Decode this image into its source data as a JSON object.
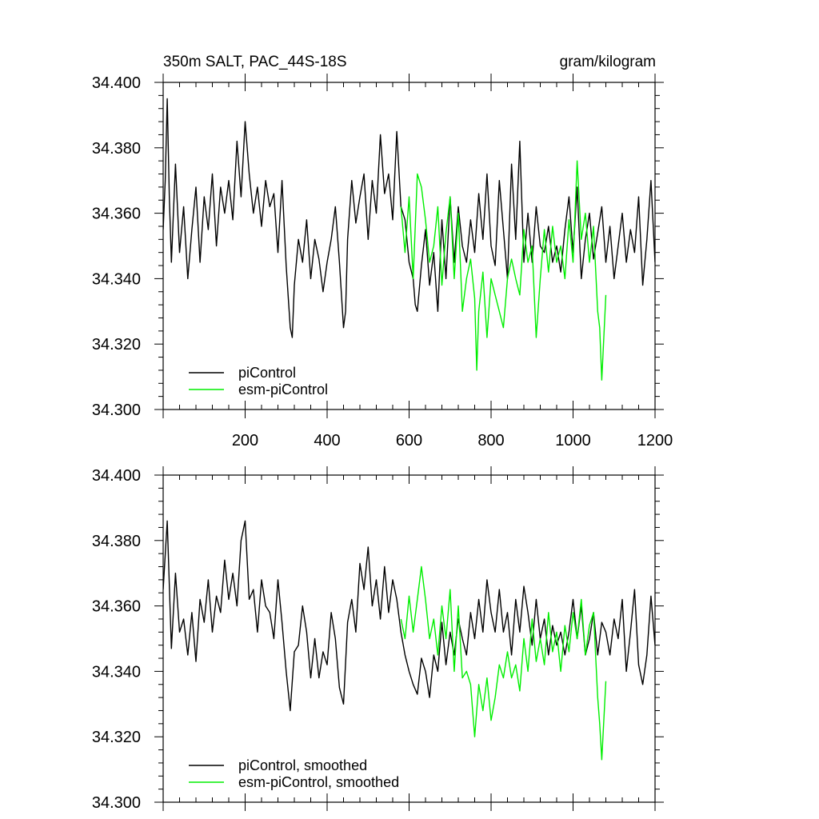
{
  "header": {
    "title_left": "350m SALT, PAC_44S-18S",
    "title_right": "gram/kilogram"
  },
  "colors": {
    "piControl": "#000000",
    "esm_piControl": "#00ee00"
  },
  "chart_data": [
    {
      "type": "line",
      "title": "350m SALT, PAC_44S-18S",
      "units": "gram/kilogram",
      "xlim": [
        0,
        1200
      ],
      "ylim": [
        34.3,
        34.4
      ],
      "xticks": [
        200,
        400,
        600,
        800,
        1000,
        1200
      ],
      "yticks": [
        "34.300",
        "34.320",
        "34.340",
        "34.360",
        "34.380",
        "34.400"
      ],
      "legend_position": "bottom-left",
      "series": [
        {
          "name": "piControl",
          "color": "#000000",
          "x": [
            0,
            5,
            10,
            15,
            20,
            25,
            30,
            40,
            50,
            60,
            70,
            80,
            90,
            100,
            110,
            120,
            130,
            140,
            150,
            160,
            170,
            180,
            190,
            200,
            210,
            220,
            230,
            240,
            250,
            260,
            270,
            280,
            290,
            300,
            310,
            315,
            320,
            330,
            340,
            350,
            360,
            370,
            380,
            390,
            400,
            410,
            420,
            430,
            440,
            445,
            450,
            460,
            470,
            480,
            490,
            500,
            510,
            520,
            530,
            540,
            550,
            560,
            570,
            580,
            590,
            600,
            610,
            615,
            620,
            630,
            640,
            650,
            660,
            670,
            680,
            690,
            700,
            710,
            720,
            730,
            740,
            750,
            760,
            770,
            780,
            790,
            800,
            810,
            820,
            830,
            840,
            850,
            860,
            870,
            880,
            890,
            900,
            910,
            920,
            930,
            940,
            950,
            960,
            970,
            980,
            990,
            1000,
            1010,
            1020,
            1030,
            1040,
            1050,
            1060,
            1070,
            1080,
            1090,
            1100,
            1110,
            1120,
            1130,
            1140,
            1150,
            1160,
            1170,
            1180,
            1190,
            1200
          ],
          "y": [
            34.355,
            34.37,
            34.395,
            34.365,
            34.345,
            34.36,
            34.375,
            34.348,
            34.362,
            34.34,
            34.355,
            34.368,
            34.345,
            34.365,
            34.355,
            34.372,
            34.35,
            34.368,
            34.36,
            34.37,
            34.358,
            34.382,
            34.365,
            34.388,
            34.372,
            34.36,
            34.368,
            34.356,
            34.37,
            34.362,
            34.366,
            34.348,
            34.37,
            34.344,
            34.325,
            34.322,
            34.338,
            34.352,
            34.345,
            34.358,
            34.34,
            34.352,
            34.346,
            34.336,
            34.345,
            34.352,
            34.362,
            34.345,
            34.325,
            34.33,
            34.352,
            34.37,
            34.357,
            34.365,
            34.372,
            34.352,
            34.37,
            34.36,
            34.384,
            34.366,
            34.372,
            34.358,
            34.385,
            34.362,
            34.358,
            34.345,
            34.34,
            34.332,
            34.33,
            34.344,
            34.355,
            34.338,
            34.348,
            34.33,
            34.358,
            34.34,
            34.365,
            34.345,
            34.362,
            34.35,
            34.345,
            34.358,
            34.348,
            34.366,
            34.352,
            34.372,
            34.35,
            34.344,
            34.37,
            34.355,
            34.34,
            34.375,
            34.352,
            34.382,
            34.345,
            34.36,
            34.345,
            34.362,
            34.35,
            34.348,
            34.356,
            34.345,
            34.35,
            34.342,
            34.355,
            34.365,
            34.348,
            34.368,
            34.34,
            34.352,
            34.36,
            34.346,
            34.354,
            34.362,
            34.345,
            34.356,
            34.34,
            34.35,
            34.36,
            34.345,
            34.355,
            34.348,
            34.365,
            34.338,
            34.352,
            34.37,
            34.345
          ]
        },
        {
          "name": "esm-piControl",
          "color": "#00ee00",
          "x": [
            580,
            590,
            600,
            610,
            620,
            630,
            640,
            650,
            660,
            670,
            680,
            690,
            700,
            710,
            720,
            730,
            740,
            750,
            760,
            765,
            770,
            780,
            790,
            800,
            810,
            820,
            830,
            840,
            850,
            860,
            870,
            880,
            890,
            900,
            910,
            920,
            930,
            940,
            950,
            960,
            970,
            980,
            990,
            1000,
            1010,
            1020,
            1030,
            1040,
            1050,
            1060,
            1065,
            1070,
            1080
          ],
          "y": [
            34.362,
            34.348,
            34.365,
            34.34,
            34.372,
            34.368,
            34.358,
            34.345,
            34.35,
            34.362,
            34.338,
            34.354,
            34.365,
            34.34,
            34.36,
            34.33,
            34.34,
            34.346,
            34.334,
            34.312,
            34.33,
            34.342,
            34.322,
            34.34,
            34.335,
            34.33,
            34.325,
            34.34,
            34.346,
            34.34,
            34.335,
            34.355,
            34.345,
            34.35,
            34.322,
            34.34,
            34.355,
            34.342,
            34.356,
            34.345,
            34.35,
            34.34,
            34.358,
            34.345,
            34.376,
            34.352,
            34.36,
            34.345,
            34.356,
            34.33,
            34.325,
            34.309,
            34.335
          ]
        }
      ]
    },
    {
      "type": "line",
      "xlim": [
        0,
        1200
      ],
      "ylim": [
        34.3,
        34.4
      ],
      "yticks": [
        "34.300",
        "34.320",
        "34.340",
        "34.360",
        "34.380",
        "34.400"
      ],
      "legend_position": "bottom-left",
      "series": [
        {
          "name": "piControl, smoothed",
          "color": "#000000",
          "x": [
            0,
            10,
            20,
            30,
            40,
            50,
            60,
            70,
            80,
            90,
            100,
            110,
            120,
            130,
            140,
            150,
            160,
            170,
            180,
            190,
            200,
            210,
            220,
            230,
            240,
            250,
            260,
            270,
            280,
            290,
            300,
            310,
            320,
            330,
            340,
            350,
            360,
            370,
            380,
            390,
            400,
            410,
            420,
            430,
            440,
            450,
            460,
            470,
            480,
            490,
            500,
            510,
            520,
            530,
            540,
            550,
            560,
            570,
            580,
            590,
            600,
            610,
            620,
            630,
            640,
            650,
            660,
            670,
            680,
            690,
            700,
            710,
            720,
            730,
            740,
            750,
            760,
            770,
            780,
            790,
            800,
            810,
            820,
            830,
            840,
            850,
            860,
            870,
            880,
            890,
            900,
            910,
            920,
            930,
            940,
            950,
            960,
            970,
            980,
            990,
            1000,
            1010,
            1020,
            1030,
            1040,
            1050,
            1060,
            1070,
            1080,
            1090,
            1100,
            1110,
            1120,
            1130,
            1140,
            1150,
            1160,
            1170,
            1180,
            1190,
            1200
          ],
          "y": [
            34.365,
            34.386,
            34.347,
            34.37,
            34.352,
            34.356,
            34.345,
            34.358,
            34.343,
            34.362,
            34.355,
            34.368,
            34.352,
            34.363,
            34.358,
            34.374,
            34.362,
            34.37,
            34.36,
            34.38,
            34.386,
            34.362,
            34.365,
            34.352,
            34.368,
            34.36,
            34.358,
            34.35,
            34.368,
            34.355,
            34.34,
            34.328,
            34.346,
            34.348,
            34.36,
            34.352,
            34.338,
            34.35,
            34.338,
            34.346,
            34.342,
            34.358,
            34.35,
            34.335,
            34.33,
            34.355,
            34.362,
            34.352,
            34.373,
            34.365,
            34.378,
            34.36,
            34.368,
            34.356,
            34.372,
            34.358,
            34.368,
            34.362,
            34.352,
            34.345,
            34.34,
            34.336,
            34.333,
            34.344,
            34.34,
            34.332,
            34.345,
            34.34,
            34.355,
            34.342,
            34.352,
            34.345,
            34.356,
            34.35,
            34.345,
            34.358,
            34.35,
            34.362,
            34.352,
            34.368,
            34.358,
            34.352,
            34.365,
            34.352,
            34.358,
            34.345,
            34.362,
            34.352,
            34.366,
            34.358,
            34.348,
            34.362,
            34.35,
            34.356,
            34.345,
            34.354,
            34.348,
            34.352,
            34.345,
            34.352,
            34.362,
            34.35,
            34.36,
            34.345,
            34.35,
            34.358,
            34.345,
            34.355,
            34.352,
            34.345,
            34.356,
            34.35,
            34.362,
            34.34,
            34.352,
            34.365,
            34.342,
            34.336,
            34.345,
            34.363,
            34.348
          ]
        },
        {
          "name": "esm-piControl, smoothed",
          "color": "#00ee00",
          "x": [
            580,
            590,
            600,
            610,
            620,
            630,
            640,
            650,
            660,
            670,
            680,
            690,
            700,
            710,
            720,
            730,
            740,
            750,
            760,
            770,
            780,
            790,
            800,
            810,
            820,
            830,
            840,
            850,
            860,
            870,
            880,
            890,
            900,
            910,
            920,
            930,
            940,
            950,
            960,
            970,
            980,
            990,
            1000,
            1010,
            1020,
            1030,
            1040,
            1050,
            1060,
            1065,
            1070,
            1080
          ],
          "y": [
            34.356,
            34.35,
            34.363,
            34.352,
            34.362,
            34.372,
            34.362,
            34.35,
            34.356,
            34.345,
            34.36,
            34.35,
            34.365,
            34.34,
            34.36,
            34.338,
            34.34,
            34.336,
            34.32,
            34.336,
            34.328,
            34.338,
            34.325,
            34.332,
            34.342,
            34.338,
            34.346,
            34.338,
            34.342,
            34.334,
            34.35,
            34.34,
            34.356,
            34.343,
            34.35,
            34.342,
            34.358,
            34.346,
            34.352,
            34.34,
            34.354,
            34.346,
            34.358,
            34.35,
            34.362,
            34.345,
            34.354,
            34.358,
            34.332,
            34.324,
            34.313,
            34.337
          ]
        }
      ]
    }
  ]
}
